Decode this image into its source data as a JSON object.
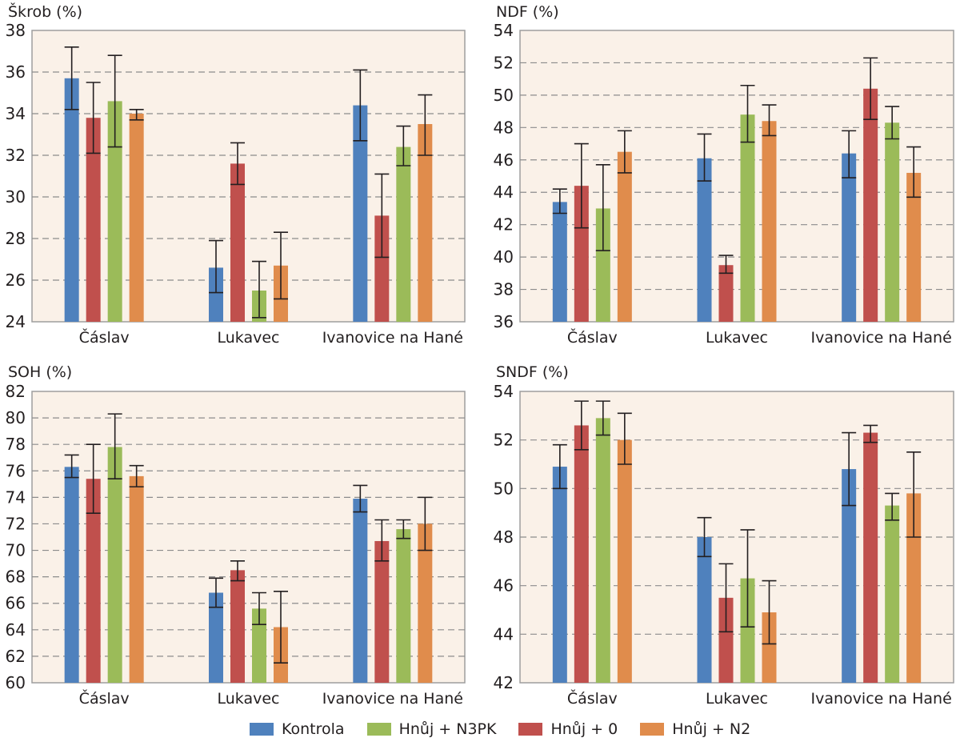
{
  "colors": {
    "Kontrola": "#4f81bd",
    "Hnůj + 0": "#c0504d",
    "Hnůj + N3PK": "#9bbb59",
    "Hnůj + N2": "#e08c4c",
    "plot_bg": "#faf1e8",
    "frame": "#9e9e9e",
    "grid": "#8c8c8c",
    "error_bar": "#231f20"
  },
  "legend": {
    "items": [
      {
        "label": "Kontrola",
        "series": "Kontrola"
      },
      {
        "label": "Hnůj + N3PK",
        "series": "Hnůj + N3PK"
      },
      {
        "label": "Hnůj + 0",
        "series": "Hnůj + 0"
      },
      {
        "label": "Hnůj + N2",
        "series": "Hnůj + N2"
      }
    ]
  },
  "chart_data": [
    {
      "type": "bar",
      "title": "Škrob (%)",
      "categories": [
        "Čáslav",
        "Lukavec",
        "Ivanovice na Hané"
      ],
      "ylim": [
        24,
        38
      ],
      "ytick_step": 2,
      "grid": true,
      "series": [
        {
          "name": "Kontrola",
          "values": [
            35.7,
            26.6,
            34.4
          ],
          "err_high": [
            37.2,
            27.9,
            36.1
          ],
          "err_low": [
            34.2,
            25.4,
            32.7
          ]
        },
        {
          "name": "Hnůj + 0",
          "values": [
            33.8,
            31.6,
            29.1
          ],
          "err_high": [
            35.5,
            32.6,
            31.1
          ],
          "err_low": [
            32.1,
            30.6,
            27.1
          ]
        },
        {
          "name": "Hnůj + N3PK",
          "values": [
            34.6,
            25.5,
            32.4
          ],
          "err_high": [
            36.8,
            26.9,
            33.4
          ],
          "err_low": [
            32.4,
            24.2,
            31.5
          ]
        },
        {
          "name": "Hnůj + N2",
          "values": [
            34.0,
            26.7,
            33.5
          ],
          "err_high": [
            34.2,
            28.3,
            34.9
          ],
          "err_low": [
            33.7,
            25.1,
            32.0
          ]
        }
      ]
    },
    {
      "type": "bar",
      "title": "NDF (%)",
      "categories": [
        "Čáslav",
        "Lukavec",
        "Ivanovice na Hané"
      ],
      "ylim": [
        36,
        54
      ],
      "ytick_step": 2,
      "grid": true,
      "series": [
        {
          "name": "Kontrola",
          "values": [
            43.4,
            46.1,
            46.4
          ],
          "err_high": [
            44.2,
            47.6,
            47.8
          ],
          "err_low": [
            42.7,
            44.7,
            44.9
          ]
        },
        {
          "name": "Hnůj + 0",
          "values": [
            44.4,
            39.5,
            50.4
          ],
          "err_high": [
            47.0,
            40.1,
            52.3
          ],
          "err_low": [
            41.8,
            39.0,
            48.5
          ]
        },
        {
          "name": "Hnůj + N3PK",
          "values": [
            43.0,
            48.8,
            48.3
          ],
          "err_high": [
            45.7,
            50.6,
            49.3
          ],
          "err_low": [
            40.4,
            47.1,
            47.3
          ]
        },
        {
          "name": "Hnůj + N2",
          "values": [
            46.5,
            48.4,
            45.2
          ],
          "err_high": [
            47.8,
            49.4,
            46.8
          ],
          "err_low": [
            45.2,
            47.5,
            43.7
          ]
        }
      ]
    },
    {
      "type": "bar",
      "title": "SOH (%)",
      "categories": [
        "Čáslav",
        "Lukavec",
        "Ivanovice na Hané"
      ],
      "ylim": [
        60,
        82
      ],
      "ytick_step": 2,
      "grid": true,
      "series": [
        {
          "name": "Kontrola",
          "values": [
            76.3,
            66.8,
            73.9
          ],
          "err_high": [
            77.2,
            67.9,
            74.9
          ],
          "err_low": [
            75.5,
            65.7,
            72.9
          ]
        },
        {
          "name": "Hnůj + 0",
          "values": [
            75.4,
            68.5,
            70.7
          ],
          "err_high": [
            78.0,
            69.2,
            72.3
          ],
          "err_low": [
            72.8,
            67.7,
            69.2
          ]
        },
        {
          "name": "Hnůj + N3PK",
          "values": [
            77.8,
            65.6,
            71.6
          ],
          "err_high": [
            80.3,
            66.8,
            72.3
          ],
          "err_low": [
            75.4,
            64.4,
            70.9
          ]
        },
        {
          "name": "Hnůj + N2",
          "values": [
            75.6,
            64.2,
            72.0
          ],
          "err_high": [
            76.4,
            66.9,
            74.0
          ],
          "err_low": [
            74.8,
            61.5,
            70.0
          ]
        }
      ]
    },
    {
      "type": "bar",
      "title": "SNDF (%)",
      "categories": [
        "Čáslav",
        "Lukavec",
        "Ivanovice na Hané"
      ],
      "ylim": [
        42,
        54
      ],
      "ytick_step": 2,
      "grid": true,
      "series": [
        {
          "name": "Kontrola",
          "values": [
            50.9,
            48.0,
            50.8
          ],
          "err_high": [
            51.8,
            48.8,
            52.3
          ],
          "err_low": [
            50.0,
            47.2,
            49.3
          ]
        },
        {
          "name": "Hnůj + 0",
          "values": [
            52.6,
            45.5,
            52.3
          ],
          "err_high": [
            53.6,
            46.9,
            52.6
          ],
          "err_low": [
            51.6,
            44.1,
            51.9
          ]
        },
        {
          "name": "Hnůj + N3PK",
          "values": [
            52.9,
            46.3,
            49.3
          ],
          "err_high": [
            53.6,
            48.3,
            49.8
          ],
          "err_low": [
            52.2,
            44.3,
            48.7
          ]
        },
        {
          "name": "Hnůj + N2",
          "values": [
            52.0,
            44.9,
            49.8
          ],
          "err_high": [
            53.1,
            46.2,
            51.5
          ],
          "err_low": [
            51.0,
            43.6,
            48.0
          ]
        }
      ]
    }
  ]
}
